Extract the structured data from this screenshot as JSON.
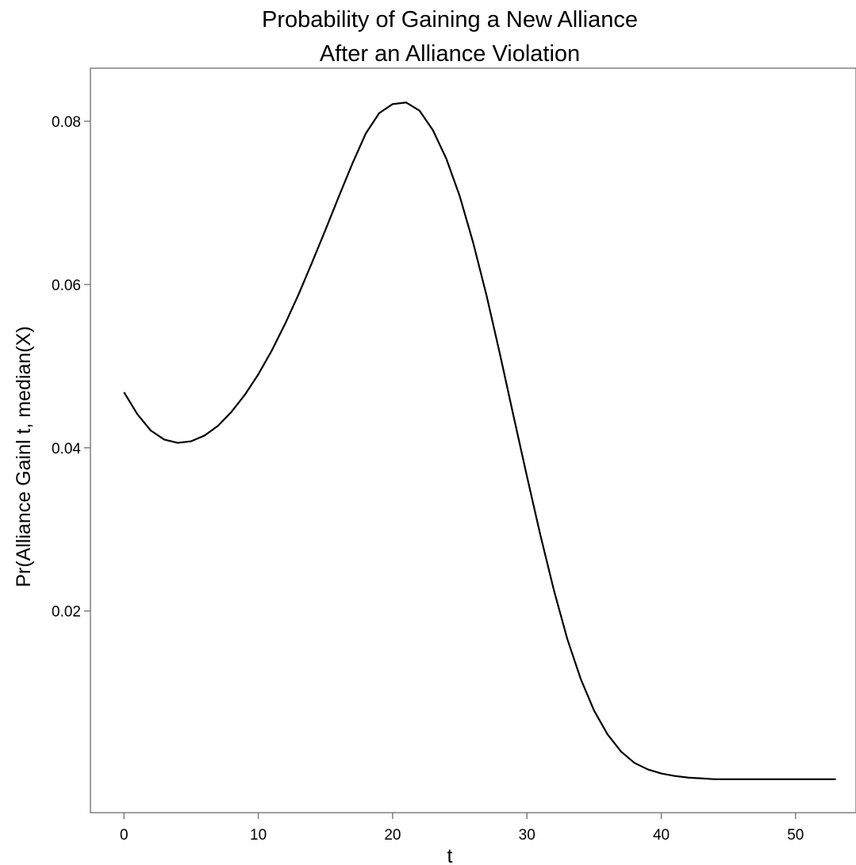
{
  "chart_data": {
    "type": "line",
    "title": [
      "Probability of Gaining a New Alliance",
      "After an Alliance Violation"
    ],
    "xlabel": "t",
    "ylabel": "Pr(Alliance Gainl t, median(X)",
    "xlim": [
      -2.5,
      54.5
    ],
    "ylim": [
      -0.0047,
      0.0865
    ],
    "x_ticks": [
      0,
      10,
      20,
      30,
      40,
      50
    ],
    "x_tick_labels": [
      "0",
      "10",
      "20",
      "30",
      "40",
      "50"
    ],
    "y_ticks": [
      0.02,
      0.04,
      0.06,
      0.08
    ],
    "y_tick_labels": [
      "0.02",
      "0.04",
      "0.06",
      "0.08"
    ],
    "grid": false,
    "line_color": "#000000",
    "series": [
      {
        "x": [
          0,
          1,
          2,
          3,
          4,
          5,
          6,
          7,
          8,
          9,
          10,
          11,
          12,
          13,
          14,
          15,
          16,
          17,
          18,
          19,
          20,
          21,
          22,
          23,
          24,
          25,
          26,
          27,
          28,
          29,
          30,
          31,
          32,
          33,
          34,
          35,
          36,
          37,
          38,
          39,
          40,
          41,
          42,
          43,
          44,
          45,
          46,
          47,
          48,
          49,
          50,
          51,
          52,
          53
        ],
        "y": [
          0.0468,
          0.0441,
          0.0421,
          0.041,
          0.0406,
          0.0408,
          0.0415,
          0.0427,
          0.0444,
          0.0465,
          0.049,
          0.0519,
          0.0552,
          0.0588,
          0.0627,
          0.0667,
          0.0708,
          0.0748,
          0.0785,
          0.081,
          0.0821,
          0.0823,
          0.0813,
          0.0789,
          0.0754,
          0.0708,
          0.0651,
          0.0586,
          0.0514,
          0.0439,
          0.0365,
          0.0293,
          0.0226,
          0.0166,
          0.0117,
          0.0078,
          0.0049,
          0.0028,
          0.0014,
          0.0006,
          0.0001,
          -0.0002,
          -0.0004,
          -0.0005,
          -0.0006,
          -0.0006,
          -0.0006,
          -0.0006,
          -0.0006,
          -0.0006,
          -0.0006,
          -0.0006,
          -0.0006,
          -0.0006
        ]
      }
    ]
  }
}
